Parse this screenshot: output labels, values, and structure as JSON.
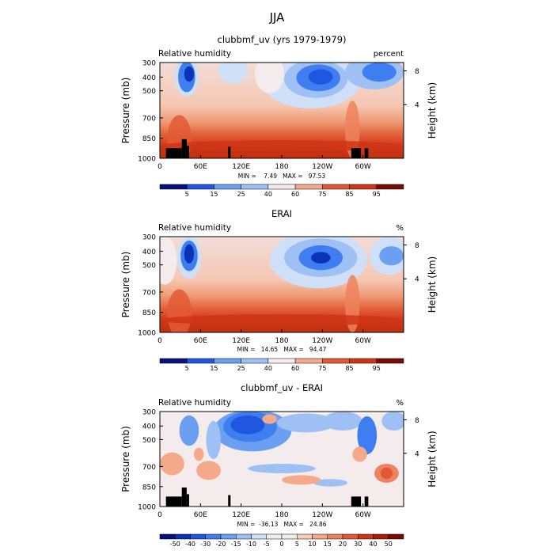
{
  "figure": {
    "title": "JJA",
    "title_color": "#8c8c8c"
  },
  "chart_data": [
    {
      "type": "heatmap",
      "title": "clubbmf_uv (yrs 1979-1979)",
      "subtitle_left": "Relative humidity",
      "subtitle_right": "percent",
      "ylabel": "Pressure (mb)",
      "ylabel_right": "Height (km)",
      "x_ticks": [
        "0",
        "60E",
        "120E",
        "180",
        "120W",
        "60W"
      ],
      "y_ticks": [
        "300",
        "400",
        "500",
        "700",
        "850",
        "1000"
      ],
      "y_right_ticks": [
        "8",
        "4"
      ],
      "stats": "MIN =    7.49   MAX =   97.53",
      "colorbar_labels": [
        "5",
        "15",
        "25",
        "40",
        "60",
        "75",
        "85",
        "95"
      ],
      "has_terrain_mask": true
    },
    {
      "type": "heatmap",
      "title": "ERAI",
      "subtitle_left": "Relative humidity",
      "subtitle_right": "%",
      "ylabel": "Pressure (mb)",
      "ylabel_right": "Height (km)",
      "x_ticks": [
        "0",
        "60E",
        "120E",
        "180",
        "120W",
        "60W"
      ],
      "y_ticks": [
        "300",
        "400",
        "500",
        "700",
        "850",
        "1000"
      ],
      "y_right_ticks": [
        "8",
        "4"
      ],
      "stats": "MIN =   14.65   MAX =   94.47",
      "colorbar_labels": [
        "5",
        "15",
        "25",
        "40",
        "60",
        "75",
        "85",
        "95"
      ],
      "has_terrain_mask": false
    },
    {
      "type": "heatmap",
      "title": "clubbmf_uv - ERAI",
      "subtitle_left": "Relative humidity",
      "subtitle_right": "%",
      "ylabel": "Pressure (mb)",
      "ylabel_right": "Height (km)",
      "x_ticks": [
        "0",
        "60E",
        "120E",
        "180",
        "120W",
        "60W"
      ],
      "y_ticks": [
        "300",
        "400",
        "500",
        "700",
        "850",
        "1000"
      ],
      "y_right_ticks": [
        "8",
        "4"
      ],
      "stats": "MIN =  -36.13   MAX =   24.86",
      "colorbar_labels": [
        "-50",
        "-40",
        "-30",
        "-20",
        "-15",
        "-10",
        "-5",
        "0",
        "5",
        "10",
        "15",
        "20",
        "30",
        "40",
        "50"
      ],
      "has_terrain_mask": true
    }
  ],
  "palette": [
    "#08107a",
    "#0b33b8",
    "#1f57e0",
    "#3f7ef0",
    "#6b9ff2",
    "#9fc0f5",
    "#cfdff8",
    "#f4ecec",
    "#f6cdb8",
    "#f3a98a",
    "#ed835c",
    "#e25a35",
    "#cf3516",
    "#ac1a08",
    "#7a0a04"
  ]
}
